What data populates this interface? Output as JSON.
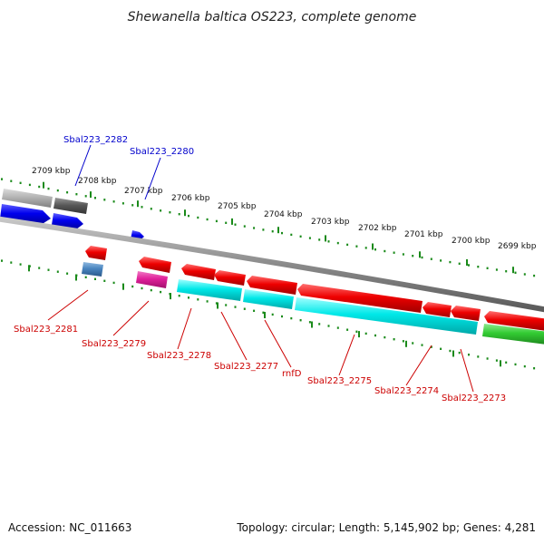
{
  "title": "Shewanella baltica OS223, complete genome",
  "footer": {
    "accession": "Accession: NC_011663",
    "topology": "Topology: circular; Length: 5,145,902 bp; Genes: 4,281"
  },
  "scale_labels": [
    "2709 kbp",
    "2708 kbp",
    "2707 kbp",
    "2706 kbp",
    "2705 kbp",
    "2704 kbp",
    "2703 kbp",
    "2702 kbp",
    "2701 kbp",
    "2700 kbp",
    "2699 kbp"
  ],
  "gene_labels": {
    "sbal223_2282": "Sbal223_2282",
    "sbal223_2280": "Sbal223_2280",
    "sbal223_2281": "Sbal223_2281",
    "sbal223_2279": "Sbal223_2279",
    "sbal223_2278": "Sbal223_2278",
    "sbal223_2277": "Sbal223_2277",
    "rnfd": "rnfD",
    "sbal223_2275": "Sbal223_2275",
    "sbal223_2274": "Sbal223_2274",
    "sbal223_2273": "Sbal223_2273"
  },
  "colors": {
    "forward_strand": "#0000ee",
    "reverse_strand": "#cc0000",
    "cds": "#ee0000",
    "cog_cyan": "#00e0e0",
    "cog_green": "#33cc33",
    "cog_magenta": "#e0209a",
    "cog_steel": "#4a86c0",
    "cog_gray": "#9e9e9e",
    "cog_darkgray": "#5a5a5a",
    "backbone": "#8a8a8a",
    "scale_ticks": "#1a8a1a"
  }
}
